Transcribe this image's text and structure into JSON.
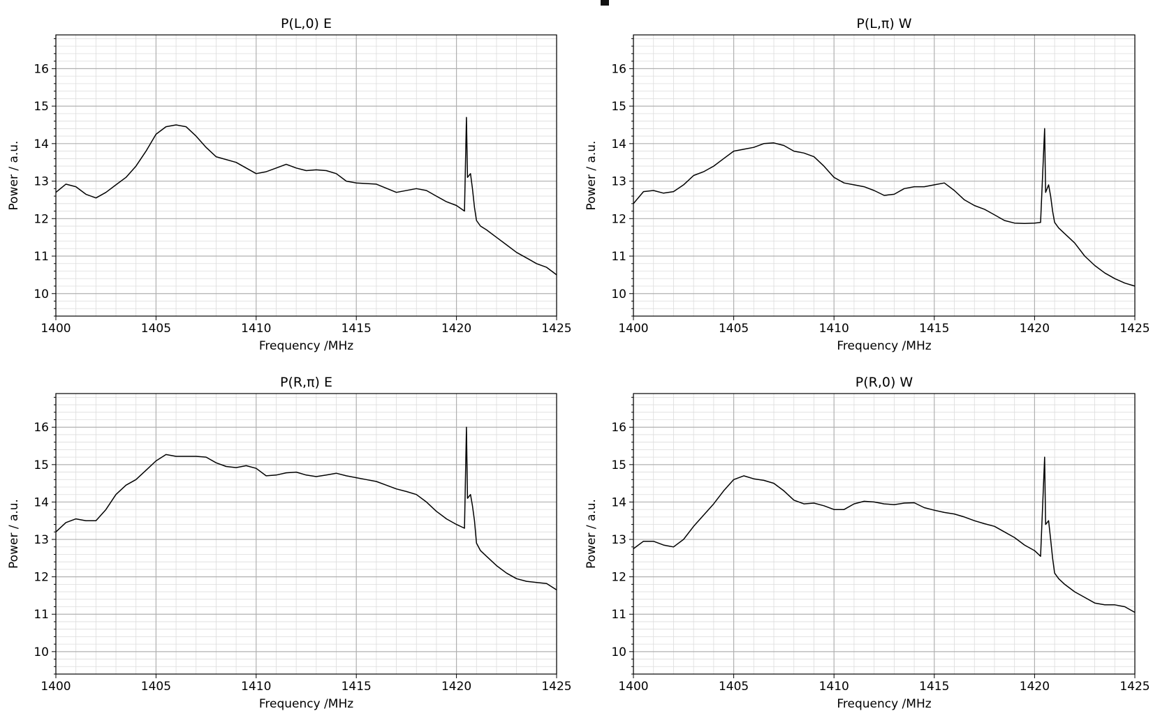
{
  "chart_data": [
    {
      "type": "line",
      "title": "P(L,0) E",
      "xlabel": "Frequency /MHz",
      "ylabel": "Power / a.u.",
      "xlim": [
        1400,
        1425
      ],
      "ylim": [
        9.4,
        16.9
      ],
      "xticks": [
        1400,
        1405,
        1410,
        1415,
        1420,
        1425
      ],
      "yticks": [
        10,
        11,
        12,
        13,
        14,
        15,
        16
      ],
      "grid": true,
      "series": [
        {
          "name": "P(L,0) E",
          "x": [
            1400,
            1400.5,
            1401,
            1401.5,
            1402,
            1402.5,
            1403,
            1403.5,
            1404,
            1404.5,
            1405,
            1405.5,
            1406,
            1406.5,
            1407,
            1407.5,
            1408,
            1409,
            1410,
            1410.5,
            1411,
            1411.5,
            1412,
            1412.5,
            1413,
            1413.5,
            1414,
            1414.5,
            1415,
            1416,
            1417,
            1418,
            1418.5,
            1419,
            1419.5,
            1420,
            1420.4,
            1420.5,
            1420.55,
            1420.7,
            1420.8,
            1420.9,
            1421,
            1421.2,
            1421.5,
            1422,
            1422.5,
            1423,
            1423.5,
            1424,
            1424.5,
            1425
          ],
          "y": [
            12.7,
            12.92,
            12.85,
            12.65,
            12.55,
            12.7,
            12.9,
            13.1,
            13.4,
            13.8,
            14.25,
            14.45,
            14.5,
            14.45,
            14.2,
            13.9,
            13.65,
            13.5,
            13.2,
            13.25,
            13.35,
            13.45,
            13.35,
            13.28,
            13.3,
            13.28,
            13.2,
            13.0,
            12.95,
            12.92,
            12.7,
            12.8,
            12.75,
            12.6,
            12.45,
            12.35,
            12.2,
            14.7,
            13.1,
            13.2,
            12.8,
            12.3,
            11.95,
            11.8,
            11.7,
            11.5,
            11.3,
            11.1,
            10.95,
            10.8,
            10.7,
            10.5
          ]
        }
      ]
    },
    {
      "type": "line",
      "title": "P(L,π) W",
      "xlabel": "Frequency /MHz",
      "ylabel": "Power / a.u.",
      "xlim": [
        1400,
        1425
      ],
      "ylim": [
        9.4,
        16.9
      ],
      "xticks": [
        1400,
        1405,
        1410,
        1415,
        1420,
        1425
      ],
      "yticks": [
        10,
        11,
        12,
        13,
        14,
        15,
        16
      ],
      "grid": true,
      "series": [
        {
          "name": "P(L,π) W",
          "x": [
            1400,
            1400.5,
            1401,
            1401.5,
            1402,
            1402.5,
            1403,
            1403.5,
            1404,
            1404.5,
            1405,
            1405.5,
            1406,
            1406.5,
            1407,
            1407.5,
            1408,
            1408.5,
            1409,
            1409.5,
            1410,
            1410.5,
            1411,
            1411.5,
            1412,
            1412.5,
            1413,
            1413.5,
            1414,
            1414.5,
            1415,
            1415.5,
            1416,
            1416.5,
            1417,
            1417.5,
            1418,
            1418.5,
            1419,
            1419.5,
            1420,
            1420.3,
            1420.5,
            1420.55,
            1420.7,
            1420.8,
            1420.9,
            1421,
            1421.2,
            1421.5,
            1422,
            1422.5,
            1423,
            1423.5,
            1424,
            1424.5,
            1425
          ],
          "y": [
            12.4,
            12.72,
            12.75,
            12.68,
            12.72,
            12.9,
            13.15,
            13.25,
            13.4,
            13.6,
            13.8,
            13.85,
            13.9,
            14.0,
            14.02,
            13.95,
            13.8,
            13.75,
            13.65,
            13.4,
            13.1,
            12.95,
            12.9,
            12.85,
            12.75,
            12.62,
            12.65,
            12.8,
            12.85,
            12.85,
            12.9,
            12.95,
            12.75,
            12.5,
            12.35,
            12.25,
            12.1,
            11.95,
            11.88,
            11.87,
            11.88,
            11.9,
            14.4,
            12.7,
            12.9,
            12.6,
            12.2,
            11.9,
            11.75,
            11.6,
            11.35,
            11.0,
            10.75,
            10.55,
            10.4,
            10.28,
            10.2
          ]
        }
      ]
    },
    {
      "type": "line",
      "title": "P(R,π) E",
      "xlabel": "Frequency /MHz",
      "ylabel": "Power / a.u.",
      "xlim": [
        1400,
        1425
      ],
      "ylim": [
        9.4,
        16.9
      ],
      "xticks": [
        1400,
        1405,
        1410,
        1415,
        1420,
        1425
      ],
      "yticks": [
        10,
        11,
        12,
        13,
        14,
        15,
        16
      ],
      "grid": true,
      "series": [
        {
          "name": "P(R,π) E",
          "x": [
            1400,
            1400.5,
            1401,
            1401.5,
            1402,
            1402.5,
            1403,
            1403.5,
            1404,
            1404.5,
            1405,
            1405.5,
            1406,
            1406.5,
            1407,
            1407.5,
            1408,
            1408.5,
            1409,
            1409.5,
            1410,
            1410.5,
            1411,
            1411.5,
            1412,
            1412.5,
            1413,
            1413.5,
            1414,
            1414.5,
            1415,
            1415.5,
            1416,
            1416.5,
            1417,
            1417.5,
            1418,
            1418.5,
            1419,
            1419.5,
            1420,
            1420.4,
            1420.5,
            1420.55,
            1420.7,
            1420.8,
            1420.9,
            1421,
            1421.2,
            1421.5,
            1422,
            1422.5,
            1423,
            1423.5,
            1424,
            1424.5,
            1425
          ],
          "y": [
            13.2,
            13.45,
            13.55,
            13.5,
            13.5,
            13.8,
            14.2,
            14.45,
            14.6,
            14.85,
            15.1,
            15.27,
            15.22,
            15.22,
            15.22,
            15.2,
            15.05,
            14.95,
            14.92,
            14.97,
            14.9,
            14.7,
            14.72,
            14.78,
            14.8,
            14.72,
            14.68,
            14.72,
            14.77,
            14.7,
            14.65,
            14.6,
            14.55,
            14.45,
            14.35,
            14.28,
            14.2,
            14.0,
            13.75,
            13.55,
            13.4,
            13.3,
            16.0,
            14.1,
            14.2,
            13.9,
            13.5,
            12.9,
            12.7,
            12.55,
            12.3,
            12.1,
            11.95,
            11.88,
            11.85,
            11.82,
            11.65
          ]
        }
      ]
    },
    {
      "type": "line",
      "title": "P(R,0) W",
      "xlabel": "Frequency /MHz",
      "ylabel": "Power / a.u.",
      "xlim": [
        1400,
        1425
      ],
      "ylim": [
        9.4,
        16.9
      ],
      "xticks": [
        1400,
        1405,
        1410,
        1415,
        1420,
        1425
      ],
      "yticks": [
        10,
        11,
        12,
        13,
        14,
        15,
        16
      ],
      "grid": true,
      "series": [
        {
          "name": "P(R,0) W",
          "x": [
            1400,
            1400.5,
            1401,
            1401.5,
            1402,
            1402.5,
            1403,
            1403.5,
            1404,
            1404.5,
            1405,
            1405.5,
            1406,
            1406.5,
            1407,
            1407.5,
            1408,
            1408.5,
            1409,
            1409.5,
            1410,
            1410.5,
            1411,
            1411.5,
            1412,
            1412.5,
            1413,
            1413.5,
            1414,
            1414.5,
            1415,
            1415.5,
            1416,
            1416.5,
            1417,
            1417.5,
            1418,
            1418.5,
            1419,
            1419.5,
            1420,
            1420.3,
            1420.5,
            1420.55,
            1420.7,
            1420.8,
            1420.9,
            1421,
            1421.2,
            1421.5,
            1422,
            1422.5,
            1423,
            1423.5,
            1424,
            1424.5,
            1425
          ],
          "y": [
            12.75,
            12.95,
            12.95,
            12.85,
            12.8,
            13.0,
            13.35,
            13.65,
            13.95,
            14.3,
            14.6,
            14.7,
            14.62,
            14.58,
            14.5,
            14.3,
            14.05,
            13.95,
            13.97,
            13.9,
            13.8,
            13.8,
            13.95,
            14.02,
            14.0,
            13.95,
            13.93,
            13.97,
            13.98,
            13.85,
            13.78,
            13.72,
            13.68,
            13.6,
            13.5,
            13.42,
            13.35,
            13.2,
            13.05,
            12.85,
            12.7,
            12.55,
            15.2,
            13.4,
            13.5,
            13.0,
            12.5,
            12.1,
            11.95,
            11.8,
            11.6,
            11.45,
            11.3,
            11.25,
            11.25,
            11.2,
            11.05
          ]
        }
      ]
    }
  ]
}
